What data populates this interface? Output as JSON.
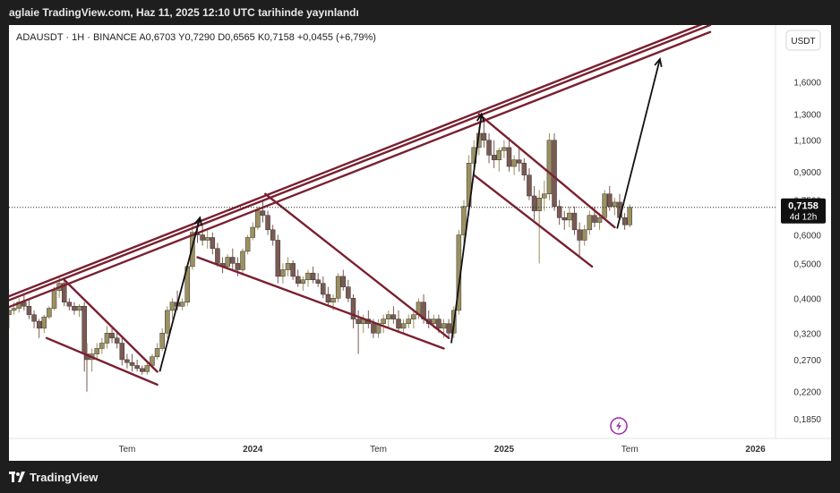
{
  "header": {
    "publish_text": "aglaie TradingView.com, Haz 11, 2025 12:10 UTC tarihinde yayınlandı"
  },
  "footer": {
    "logo_text": "TradingView"
  },
  "chart_data": {
    "type": "candlestick",
    "symbol_line": "ADAUSDT · 1H · BINANCE  A0,6703  Y0,7290  D0,6565  K0,7158  +0,0455 (+6,79%)",
    "currency_button": "USDT",
    "scale": "log",
    "y_ticks": [
      "1,6000",
      "1,3000",
      "1,1000",
      "0,9000",
      "0,7500",
      "0,6000",
      "0,5000",
      "0,4000",
      "0,3200",
      "0,2700",
      "0,2200",
      "0,1850"
    ],
    "y_tick_values": [
      1.6,
      1.3,
      1.1,
      0.9,
      0.75,
      0.6,
      0.5,
      0.4,
      0.32,
      0.27,
      0.22,
      0.185
    ],
    "x_ticks": [
      {
        "label": "Tem",
        "bold": false,
        "x": 2023.5
      },
      {
        "label": "2024",
        "bold": true,
        "x": 2024.0
      },
      {
        "label": "Tem",
        "bold": false,
        "x": 2024.5
      },
      {
        "label": "2025",
        "bold": true,
        "x": 2025.0
      },
      {
        "label": "Tem",
        "bold": false,
        "x": 2025.5
      },
      {
        "label": "2026",
        "bold": true,
        "x": 2026.0
      }
    ],
    "x_range": [
      2023.03,
      2026.08
    ],
    "y_range": [
      0.163,
      2.3
    ],
    "last_price": {
      "label": "0,7158",
      "value": 0.7158,
      "countdown": "4d 12h"
    },
    "colors": {
      "bull": "#9c9060",
      "bear": "#7a5a52",
      "trend": "#7a2030",
      "arrow": "#111111",
      "price_label": "#111111"
    },
    "candles": [
      [
        2023.03,
        0.36,
        0.38,
        0.33,
        0.37
      ],
      [
        2023.05,
        0.37,
        0.39,
        0.36,
        0.375
      ],
      [
        2023.07,
        0.375,
        0.4,
        0.365,
        0.39
      ],
      [
        2023.09,
        0.39,
        0.41,
        0.37,
        0.38
      ],
      [
        2023.11,
        0.38,
        0.395,
        0.35,
        0.36
      ],
      [
        2023.13,
        0.36,
        0.37,
        0.33,
        0.345
      ],
      [
        2023.15,
        0.345,
        0.35,
        0.31,
        0.33
      ],
      [
        2023.17,
        0.33,
        0.36,
        0.32,
        0.355
      ],
      [
        2023.19,
        0.355,
        0.38,
        0.35,
        0.375
      ],
      [
        2023.21,
        0.375,
        0.43,
        0.37,
        0.42
      ],
      [
        2023.23,
        0.42,
        0.46,
        0.4,
        0.44
      ],
      [
        2023.25,
        0.44,
        0.45,
        0.38,
        0.39
      ],
      [
        2023.27,
        0.39,
        0.4,
        0.37,
        0.38
      ],
      [
        2023.29,
        0.38,
        0.39,
        0.36,
        0.37
      ],
      [
        2023.31,
        0.37,
        0.385,
        0.355,
        0.38
      ],
      [
        2023.33,
        0.38,
        0.39,
        0.25,
        0.28
      ],
      [
        2023.34,
        0.28,
        0.3,
        0.22,
        0.27
      ],
      [
        2023.36,
        0.27,
        0.29,
        0.25,
        0.28
      ],
      [
        2023.38,
        0.28,
        0.3,
        0.27,
        0.29
      ],
      [
        2023.4,
        0.29,
        0.31,
        0.28,
        0.3
      ],
      [
        2023.42,
        0.3,
        0.335,
        0.29,
        0.32
      ],
      [
        2023.44,
        0.32,
        0.33,
        0.3,
        0.31
      ],
      [
        2023.46,
        0.31,
        0.32,
        0.29,
        0.3
      ],
      [
        2023.48,
        0.3,
        0.31,
        0.26,
        0.27
      ],
      [
        2023.5,
        0.27,
        0.28,
        0.255,
        0.265
      ],
      [
        2023.52,
        0.265,
        0.28,
        0.25,
        0.26
      ],
      [
        2023.54,
        0.26,
        0.27,
        0.25,
        0.255
      ],
      [
        2023.56,
        0.255,
        0.26,
        0.245,
        0.25
      ],
      [
        2023.58,
        0.25,
        0.265,
        0.245,
        0.26
      ],
      [
        2023.6,
        0.26,
        0.28,
        0.255,
        0.275
      ],
      [
        2023.62,
        0.275,
        0.3,
        0.27,
        0.29
      ],
      [
        2023.64,
        0.29,
        0.33,
        0.285,
        0.32
      ],
      [
        2023.66,
        0.32,
        0.38,
        0.31,
        0.37
      ],
      [
        2023.68,
        0.37,
        0.4,
        0.35,
        0.39
      ],
      [
        2023.7,
        0.39,
        0.42,
        0.37,
        0.38
      ],
      [
        2023.72,
        0.38,
        0.4,
        0.37,
        0.39
      ],
      [
        2023.74,
        0.39,
        0.5,
        0.38,
        0.49
      ],
      [
        2023.76,
        0.49,
        0.64,
        0.48,
        0.61
      ],
      [
        2023.78,
        0.61,
        0.66,
        0.57,
        0.6
      ],
      [
        2023.8,
        0.6,
        0.64,
        0.56,
        0.58
      ],
      [
        2023.82,
        0.58,
        0.62,
        0.55,
        0.59
      ],
      [
        2023.84,
        0.59,
        0.61,
        0.53,
        0.55
      ],
      [
        2023.86,
        0.55,
        0.57,
        0.49,
        0.5
      ],
      [
        2023.88,
        0.5,
        0.52,
        0.47,
        0.49
      ],
      [
        2023.9,
        0.49,
        0.53,
        0.48,
        0.52
      ],
      [
        2023.92,
        0.52,
        0.55,
        0.48,
        0.5
      ],
      [
        2023.94,
        0.5,
        0.52,
        0.46,
        0.48
      ],
      [
        2023.96,
        0.48,
        0.55,
        0.47,
        0.54
      ],
      [
        2023.98,
        0.54,
        0.6,
        0.53,
        0.59
      ],
      [
        2024.0,
        0.59,
        0.65,
        0.58,
        0.63
      ],
      [
        2024.02,
        0.63,
        0.72,
        0.62,
        0.7
      ],
      [
        2024.04,
        0.7,
        0.75,
        0.65,
        0.68
      ],
      [
        2024.06,
        0.68,
        0.7,
        0.6,
        0.62
      ],
      [
        2024.08,
        0.62,
        0.64,
        0.56,
        0.58
      ],
      [
        2024.1,
        0.58,
        0.6,
        0.44,
        0.46
      ],
      [
        2024.12,
        0.46,
        0.5,
        0.44,
        0.48
      ],
      [
        2024.14,
        0.48,
        0.52,
        0.46,
        0.5
      ],
      [
        2024.16,
        0.5,
        0.51,
        0.45,
        0.46
      ],
      [
        2024.18,
        0.46,
        0.48,
        0.43,
        0.44
      ],
      [
        2024.2,
        0.44,
        0.46,
        0.42,
        0.45
      ],
      [
        2024.22,
        0.45,
        0.48,
        0.43,
        0.47
      ],
      [
        2024.24,
        0.47,
        0.49,
        0.44,
        0.45
      ],
      [
        2024.26,
        0.45,
        0.47,
        0.43,
        0.44
      ],
      [
        2024.28,
        0.44,
        0.46,
        0.4,
        0.41
      ],
      [
        2024.3,
        0.41,
        0.43,
        0.38,
        0.39
      ],
      [
        2024.32,
        0.39,
        0.41,
        0.37,
        0.4
      ],
      [
        2024.34,
        0.4,
        0.47,
        0.39,
        0.46
      ],
      [
        2024.36,
        0.46,
        0.48,
        0.42,
        0.43
      ],
      [
        2024.38,
        0.43,
        0.45,
        0.39,
        0.4
      ],
      [
        2024.4,
        0.4,
        0.41,
        0.33,
        0.35
      ],
      [
        2024.42,
        0.35,
        0.37,
        0.28,
        0.34
      ],
      [
        2024.44,
        0.34,
        0.36,
        0.32,
        0.35
      ],
      [
        2024.46,
        0.35,
        0.37,
        0.33,
        0.34
      ],
      [
        2024.48,
        0.34,
        0.35,
        0.31,
        0.32
      ],
      [
        2024.5,
        0.32,
        0.35,
        0.31,
        0.34
      ],
      [
        2024.52,
        0.34,
        0.36,
        0.32,
        0.35
      ],
      [
        2024.54,
        0.35,
        0.37,
        0.33,
        0.36
      ],
      [
        2024.56,
        0.36,
        0.38,
        0.34,
        0.35
      ],
      [
        2024.58,
        0.35,
        0.37,
        0.32,
        0.33
      ],
      [
        2024.6,
        0.33,
        0.35,
        0.32,
        0.34
      ],
      [
        2024.62,
        0.34,
        0.36,
        0.33,
        0.35
      ],
      [
        2024.64,
        0.35,
        0.37,
        0.33,
        0.36
      ],
      [
        2024.66,
        0.36,
        0.4,
        0.35,
        0.39
      ],
      [
        2024.68,
        0.39,
        0.41,
        0.34,
        0.35
      ],
      [
        2024.7,
        0.35,
        0.37,
        0.33,
        0.34
      ],
      [
        2024.72,
        0.34,
        0.36,
        0.33,
        0.35
      ],
      [
        2024.74,
        0.35,
        0.36,
        0.32,
        0.33
      ],
      [
        2024.76,
        0.33,
        0.35,
        0.31,
        0.34
      ],
      [
        2024.78,
        0.34,
        0.35,
        0.31,
        0.32
      ],
      [
        2024.8,
        0.32,
        0.38,
        0.31,
        0.37
      ],
      [
        2024.82,
        0.37,
        0.62,
        0.36,
        0.6
      ],
      [
        2024.84,
        0.6,
        0.75,
        0.56,
        0.72
      ],
      [
        2024.86,
        0.72,
        1.0,
        0.68,
        0.95
      ],
      [
        2024.88,
        0.95,
        1.1,
        0.9,
        1.05
      ],
      [
        2024.9,
        1.05,
        1.2,
        1.0,
        1.15
      ],
      [
        2024.92,
        1.15,
        1.25,
        1.05,
        1.1
      ],
      [
        2024.94,
        1.1,
        1.15,
        0.95,
        1.0
      ],
      [
        2024.96,
        1.0,
        1.1,
        0.92,
        0.97
      ],
      [
        2024.98,
        0.97,
        1.05,
        0.9,
        1.03
      ],
      [
        2025.0,
        1.03,
        1.1,
        0.98,
        1.05
      ],
      [
        2025.02,
        1.05,
        1.12,
        0.9,
        0.93
      ],
      [
        2025.04,
        0.93,
        1.0,
        0.88,
        0.97
      ],
      [
        2025.06,
        0.97,
        1.05,
        0.9,
        0.95
      ],
      [
        2025.08,
        0.95,
        0.98,
        0.85,
        0.88
      ],
      [
        2025.1,
        0.88,
        0.92,
        0.75,
        0.77
      ],
      [
        2025.12,
        0.77,
        0.82,
        0.66,
        0.7
      ],
      [
        2025.14,
        0.7,
        0.8,
        0.5,
        0.76
      ],
      [
        2025.16,
        0.76,
        0.85,
        0.7,
        0.78
      ],
      [
        2025.18,
        0.78,
        1.15,
        0.75,
        1.1
      ],
      [
        2025.2,
        1.1,
        1.15,
        0.7,
        0.72
      ],
      [
        2025.22,
        0.72,
        0.75,
        0.64,
        0.67
      ],
      [
        2025.24,
        0.67,
        0.7,
        0.62,
        0.66
      ],
      [
        2025.26,
        0.66,
        0.72,
        0.63,
        0.69
      ],
      [
        2025.28,
        0.69,
        0.72,
        0.6,
        0.62
      ],
      [
        2025.3,
        0.62,
        0.65,
        0.52,
        0.58
      ],
      [
        2025.32,
        0.58,
        0.64,
        0.56,
        0.62
      ],
      [
        2025.34,
        0.62,
        0.7,
        0.6,
        0.68
      ],
      [
        2025.36,
        0.68,
        0.72,
        0.63,
        0.65
      ],
      [
        2025.38,
        0.65,
        0.69,
        0.62,
        0.67
      ],
      [
        2025.4,
        0.67,
        0.8,
        0.66,
        0.78
      ],
      [
        2025.42,
        0.78,
        0.82,
        0.7,
        0.72
      ],
      [
        2025.44,
        0.72,
        0.76,
        0.68,
        0.74
      ],
      [
        2025.46,
        0.74,
        0.78,
        0.66,
        0.67
      ],
      [
        2025.48,
        0.67,
        0.69,
        0.62,
        0.64
      ],
      [
        2025.5,
        0.64,
        0.73,
        0.63,
        0.7158
      ]
    ],
    "trendlines": [
      {
        "from": [
          2023.03,
          0.395
        ],
        "to": [
          2025.82,
          2.3
        ]
      },
      {
        "from": [
          2023.03,
          0.378
        ],
        "to": [
          2025.82,
          2.2
        ]
      },
      {
        "from": [
          2023.03,
          0.405
        ],
        "to": [
          2025.82,
          2.36
        ]
      },
      {
        "from": [
          2023.25,
          0.45
        ],
        "to": [
          2023.62,
          0.25
        ]
      },
      {
        "from": [
          2023.18,
          0.31
        ],
        "to": [
          2023.62,
          0.23
        ]
      },
      {
        "from": [
          2024.05,
          0.78
        ],
        "to": [
          2024.78,
          0.31
        ]
      },
      {
        "from": [
          2023.78,
          0.52
        ],
        "to": [
          2024.76,
          0.29
        ]
      },
      {
        "from": [
          2024.9,
          1.3
        ],
        "to": [
          2025.44,
          0.63
        ]
      },
      {
        "from": [
          2024.88,
          0.88
        ],
        "to": [
          2025.35,
          0.49
        ]
      }
    ],
    "arrows": [
      {
        "from": [
          2023.63,
          0.25
        ],
        "to": [
          2023.79,
          0.67
        ]
      },
      {
        "from": [
          2024.79,
          0.3
        ],
        "to": [
          2024.91,
          1.3
        ]
      },
      {
        "from": [
          2025.45,
          0.625
        ],
        "to": [
          2025.62,
          1.85
        ]
      }
    ]
  }
}
